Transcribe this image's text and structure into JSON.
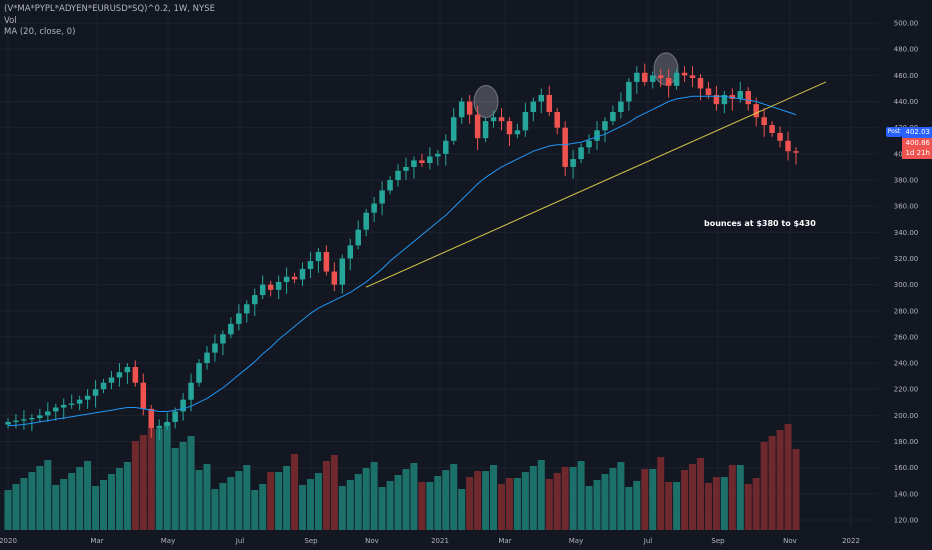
{
  "legend": {
    "symbol": "(V*MA*PYPL*ADYEN*EURUSD*SQ)^0.2, 1W, NYSE",
    "vol": "Vol",
    "ma": "MA (20, close, 0)"
  },
  "annotation": "bounces at $380 to $430",
  "price_tags": {
    "post_label": "Post",
    "post_price": "402.03",
    "last_price": "400.86",
    "countdown": "1d 21h"
  },
  "colors": {
    "background": "#131722",
    "up": "#26a69a",
    "down": "#ef5350",
    "up_volume": "#1e7a72",
    "down_volume": "#7a2a2e",
    "ma_line": "#2196f3",
    "trendline": "#d4c84a",
    "grid": "#1e222d",
    "axis_text": "#b2b5be"
  },
  "chart_data": {
    "type": "candlestick",
    "timeframe": "1W",
    "y_axis": {
      "side": "right",
      "ticks": [
        120,
        140,
        160,
        180,
        200,
        220,
        240,
        260,
        280,
        300,
        320,
        340,
        360,
        380,
        400,
        420,
        440,
        460,
        480,
        500
      ],
      "ylim": [
        110,
        505
      ]
    },
    "x_axis": {
      "labels": [
        "2020",
        "Mar",
        "May",
        "Jul",
        "Sep",
        "Nov",
        "2021",
        "Mar",
        "May",
        "Jul",
        "Sep",
        "Nov",
        "2022"
      ]
    },
    "grid": true,
    "closes": [
      195,
      196,
      197,
      198,
      200,
      203,
      206,
      208,
      209,
      212,
      215,
      220,
      225,
      229,
      233,
      237,
      225,
      205,
      190,
      192,
      195,
      203,
      212,
      225,
      240,
      248,
      255,
      262,
      270,
      278,
      285,
      292,
      300,
      296,
      302,
      306,
      304,
      312,
      318,
      325,
      310,
      300,
      320,
      330,
      342,
      355,
      362,
      372,
      380,
      387,
      390,
      395,
      393,
      398,
      400,
      410,
      428,
      440,
      430,
      412,
      425,
      428,
      425,
      415,
      418,
      432,
      440,
      445,
      432,
      420,
      390,
      396,
      405,
      410,
      418,
      425,
      432,
      440,
      455,
      462,
      455,
      460,
      458,
      452,
      462,
      460,
      458,
      450,
      445,
      438,
      445,
      442,
      448,
      438,
      428,
      422,
      416,
      410,
      402,
      400.86
    ],
    "ma20": [
      192,
      192.5,
      193,
      194,
      195,
      196,
      197,
      198,
      199,
      200,
      201,
      202,
      203,
      204,
      205,
      206,
      206,
      205,
      204,
      203,
      203,
      204,
      205,
      207,
      210,
      213,
      217,
      221,
      226,
      231,
      236,
      241,
      247,
      252,
      258,
      263,
      268,
      273,
      278,
      282,
      285,
      288,
      291,
      294,
      298,
      302,
      307,
      312,
      318,
      323,
      328,
      333,
      338,
      343,
      348,
      353,
      359,
      365,
      371,
      377,
      382,
      386,
      390,
      393,
      396,
      399,
      402,
      404,
      406,
      407,
      407,
      408,
      409,
      411,
      413,
      415,
      418,
      421,
      424,
      428,
      431,
      434,
      437,
      440,
      442,
      443,
      444,
      444,
      444,
      444,
      444,
      443,
      442,
      441,
      440,
      438,
      436,
      434,
      432,
      430
    ],
    "trendline": {
      "from": {
        "date": "2020-11",
        "price": 298
      },
      "to": {
        "date": "2021-12",
        "price": 455
      }
    },
    "highlighted_peaks": [
      "2021-02",
      "2021-07"
    ],
    "last_close": 400.86,
    "post_price": 402.03
  }
}
